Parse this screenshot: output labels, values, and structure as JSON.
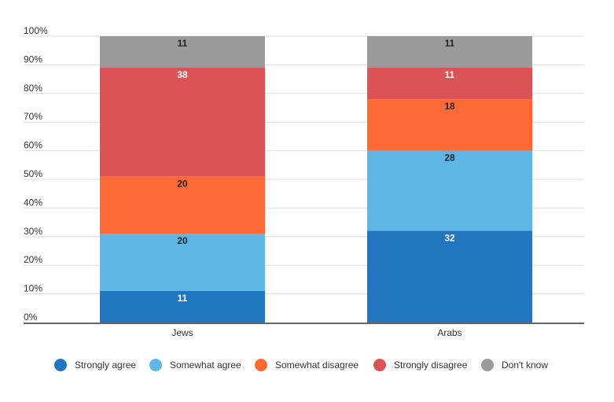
{
  "chart_data": {
    "type": "bar",
    "stacked": true,
    "categories": [
      "Jews",
      "Arabs"
    ],
    "series": [
      {
        "name": "Strongly agree",
        "values": [
          11,
          32
        ],
        "color": "#2276c0",
        "label_color": "#ffffff"
      },
      {
        "name": "Somewhat agree",
        "values": [
          20,
          28
        ],
        "color": "#5fb5e4",
        "label_color": "#222222"
      },
      {
        "name": "Somewhat disagree",
        "values": [
          20,
          18
        ],
        "color": "#fe6a36",
        "label_color": "#222222"
      },
      {
        "name": "Strongly disagree",
        "values": [
          38,
          11
        ],
        "color": "#dc5357",
        "label_color": "#ffffff"
      },
      {
        "name": "Don't know",
        "values": [
          11,
          11
        ],
        "color": "#9b9b9b",
        "label_color": "#222222"
      }
    ],
    "ylim": [
      0,
      100
    ],
    "y_ticks": [
      "0%",
      "10%",
      "20%",
      "30%",
      "40%",
      "50%",
      "60%",
      "70%",
      "80%",
      "90%",
      "100%"
    ],
    "grid": true,
    "legend_position": "bottom"
  }
}
